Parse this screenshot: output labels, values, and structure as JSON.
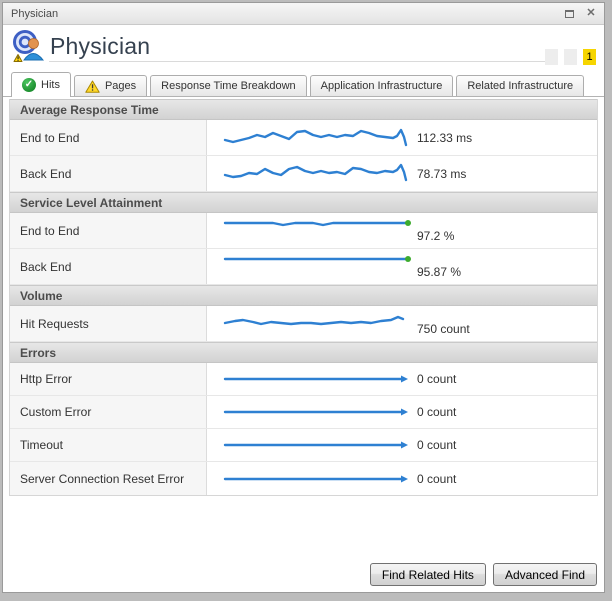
{
  "colors": {
    "spark_blue": "#2e80d2",
    "sla_dot_green": "#3dab2e",
    "badge_yellow": "#f6d500"
  },
  "window": {
    "title": "Physician"
  },
  "header": {
    "title": "Physician",
    "page_current": "1"
  },
  "tabs": [
    {
      "label": "Hits",
      "status_icon": "ok",
      "active": true
    },
    {
      "label": "Pages",
      "status_icon": "warning",
      "active": false
    },
    {
      "label": "Response Time Breakdown",
      "active": false
    },
    {
      "label": "Application Infrastructure",
      "active": false
    },
    {
      "label": "Related Infrastructure",
      "active": false
    }
  ],
  "sections": [
    {
      "title": "Average Response Time",
      "rows": [
        {
          "label": "End to End",
          "value": "112.33 ms"
        },
        {
          "label": "Back End",
          "value": "78.73 ms"
        }
      ]
    },
    {
      "title": "Service Level Attainment",
      "rows": [
        {
          "label": "End to End",
          "value": "97.2 %"
        },
        {
          "label": "Back End",
          "value": "95.87 %"
        }
      ]
    },
    {
      "title": "Volume",
      "rows": [
        {
          "label": "Hit Requests",
          "value": "750 count"
        }
      ]
    },
    {
      "title": "Errors",
      "rows": [
        {
          "label": "Http Error",
          "value": "0 count"
        },
        {
          "label": "Custom Error",
          "value": "0 count"
        },
        {
          "label": "Timeout",
          "value": "0 count"
        },
        {
          "label": "Server Connection Reset Error",
          "value": "0 count"
        }
      ]
    }
  ],
  "sparklines": {
    "art_end_to_end": [
      [
        0,
        17
      ],
      [
        8,
        19
      ],
      [
        16,
        17
      ],
      [
        24,
        15
      ],
      [
        32,
        12
      ],
      [
        40,
        14
      ],
      [
        48,
        10
      ],
      [
        56,
        13
      ],
      [
        64,
        16
      ],
      [
        72,
        9
      ],
      [
        80,
        8
      ],
      [
        88,
        12
      ],
      [
        96,
        14
      ],
      [
        104,
        12
      ],
      [
        112,
        14
      ],
      [
        120,
        12
      ],
      [
        128,
        13
      ],
      [
        136,
        8
      ],
      [
        144,
        10
      ],
      [
        152,
        13
      ],
      [
        160,
        14
      ],
      [
        168,
        15
      ],
      [
        172,
        13
      ],
      [
        176,
        7
      ],
      [
        179,
        14
      ],
      [
        181,
        22
      ]
    ],
    "art_back_end": [
      [
        0,
        16
      ],
      [
        8,
        18
      ],
      [
        16,
        17
      ],
      [
        24,
        14
      ],
      [
        32,
        15
      ],
      [
        40,
        10
      ],
      [
        48,
        14
      ],
      [
        56,
        16
      ],
      [
        64,
        10
      ],
      [
        72,
        8
      ],
      [
        80,
        12
      ],
      [
        88,
        14
      ],
      [
        96,
        12
      ],
      [
        104,
        14
      ],
      [
        112,
        13
      ],
      [
        120,
        15
      ],
      [
        128,
        9
      ],
      [
        136,
        10
      ],
      [
        144,
        13
      ],
      [
        152,
        14
      ],
      [
        160,
        12
      ],
      [
        168,
        13
      ],
      [
        172,
        11
      ],
      [
        176,
        6
      ],
      [
        179,
        13
      ],
      [
        181,
        21
      ]
    ],
    "sla_end_to_end": [
      [
        0,
        5
      ],
      [
        30,
        5
      ],
      [
        48,
        5
      ],
      [
        58,
        7
      ],
      [
        70,
        5
      ],
      [
        88,
        5
      ],
      [
        98,
        7
      ],
      [
        108,
        5
      ],
      [
        130,
        5
      ],
      [
        160,
        5
      ],
      [
        183,
        5
      ]
    ],
    "sla_back_end": [
      [
        0,
        5
      ],
      [
        183,
        5
      ]
    ],
    "volume_hit_requests": [
      [
        0,
        12
      ],
      [
        10,
        10
      ],
      [
        18,
        9
      ],
      [
        28,
        11
      ],
      [
        36,
        13
      ],
      [
        46,
        11
      ],
      [
        56,
        12
      ],
      [
        66,
        13
      ],
      [
        76,
        12
      ],
      [
        86,
        12
      ],
      [
        96,
        13
      ],
      [
        106,
        12
      ],
      [
        116,
        11
      ],
      [
        126,
        12
      ],
      [
        136,
        11
      ],
      [
        146,
        12
      ],
      [
        156,
        10
      ],
      [
        166,
        9
      ],
      [
        173,
        6
      ],
      [
        178,
        8
      ]
    ],
    "error_flat": [
      [
        0,
        15
      ],
      [
        176,
        15
      ]
    ]
  },
  "footer": {
    "buttons": [
      "Find Related Hits",
      "Advanced Find"
    ]
  }
}
